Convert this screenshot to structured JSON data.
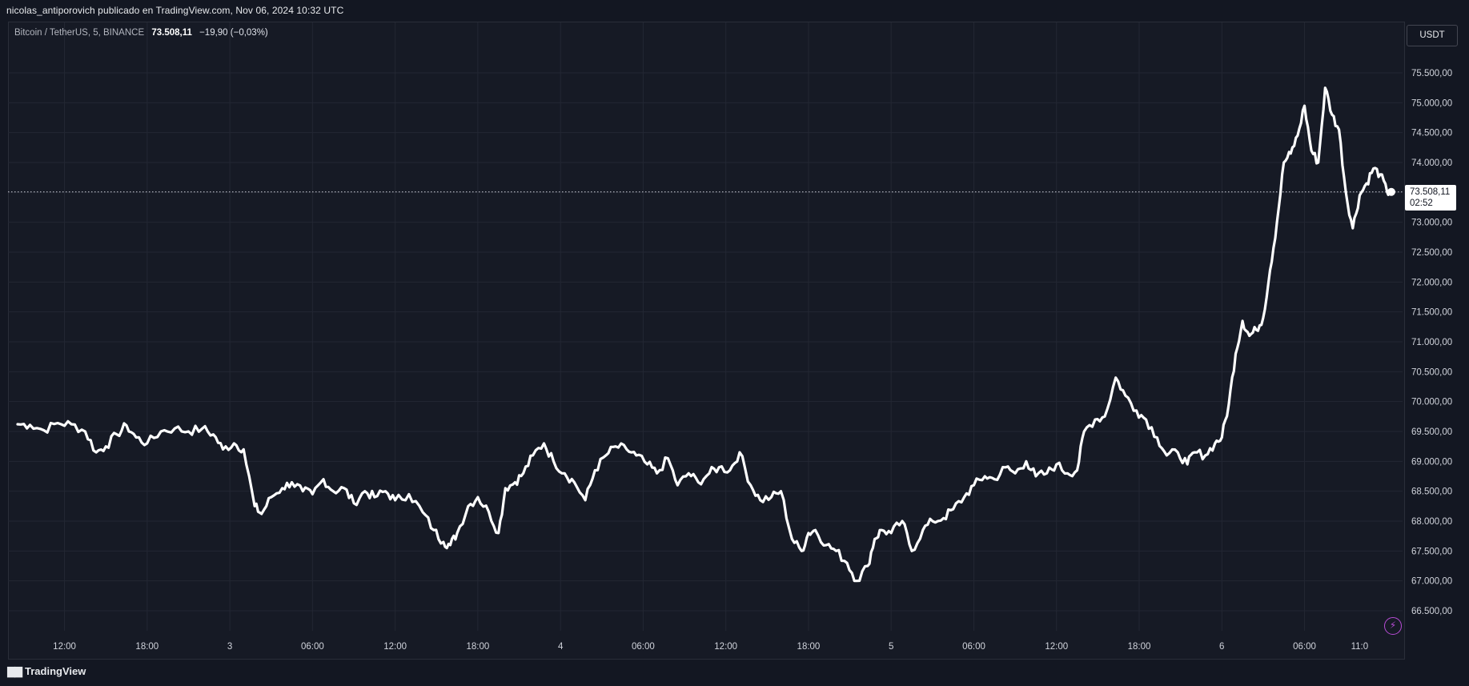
{
  "header": {
    "published_by": "nicolas_antiporovich publicado en TradingView.com, Nov 06, 2024 10:32 UTC"
  },
  "legend": {
    "symbol": "Bitcoin / TetherUS, 5, BINANCE",
    "last_price": "73.508,11",
    "change": "−19,90 (−0,03%)"
  },
  "toolbar": {
    "currency_label": "USDT",
    "flash_icon": "lightning-icon"
  },
  "price_tag": {
    "price": "73.508,11",
    "countdown": "02:52"
  },
  "footer": {
    "brand": "TradingView",
    "logo_icon": "tradingview-logo-icon"
  },
  "colors": {
    "background": "#131722",
    "grid": "#2a2e39",
    "line": "#ffffff",
    "axis_text": "#d1d4dc",
    "accent": "#b84cd6"
  },
  "chart_data": {
    "type": "line",
    "title": "",
    "xlabel": "",
    "ylabel": "",
    "ylim": [
      66150,
      76150
    ],
    "grid": true,
    "y_ticks": [
      66500,
      67000,
      67500,
      68000,
      68500,
      69000,
      69500,
      70000,
      70500,
      71000,
      71500,
      72000,
      72500,
      73000,
      73500,
      74000,
      74500,
      75000,
      75500
    ],
    "y_tick_labels": [
      "66.500,00",
      "67.000,00",
      "67.500,00",
      "68.000,00",
      "68.500,00",
      "69.000,00",
      "69.500,00",
      "70.000,00",
      "70.500,00",
      "71.000,00",
      "71.500,00",
      "72.000,00",
      "72.500,00",
      "73.000,00",
      "73.500,00",
      "74.000,00",
      "74.500,00",
      "75.000,00",
      "75.500,00"
    ],
    "x_tick_labels": [
      "12:00",
      "18:00",
      "3",
      "06:00",
      "12:00",
      "18:00",
      "4",
      "06:00",
      "12:00",
      "18:00",
      "5",
      "06:00",
      "12:00",
      "18:00",
      "6",
      "06:00",
      "11:0"
    ],
    "x_tick_hours": [
      12,
      18,
      24,
      30,
      36,
      42,
      48,
      54,
      60,
      66,
      72,
      78,
      84,
      90,
      96,
      102,
      106
    ],
    "x_unit": "hours since Nov 02 00:00 UTC",
    "current_price_line": 73508.11,
    "series": [
      {
        "name": "BTCUSDT",
        "x": [
          8.6,
          9.5,
          10.5,
          11.5,
          12.5,
          13.5,
          14.3,
          15.0,
          15.8,
          16.5,
          17.2,
          18.0,
          19.0,
          20.0,
          21.0,
          22.0,
          22.8,
          23.5,
          24.3,
          25.0,
          25.8,
          26.3,
          27.0,
          27.8,
          28.5,
          29.3,
          30.0,
          30.8,
          31.5,
          32.3,
          33.0,
          33.8,
          34.5,
          35.3,
          36.0,
          37.0,
          38.0,
          38.8,
          39.5,
          40.0,
          40.5,
          41.3,
          42.0,
          42.8,
          43.5,
          44.0,
          44.7,
          45.3,
          46.0,
          46.8,
          47.5,
          48.3,
          49.0,
          49.8,
          50.5,
          51.3,
          52.0,
          52.8,
          53.5,
          54.3,
          55.0,
          55.8,
          56.5,
          57.3,
          58.0,
          58.8,
          59.5,
          60.3,
          61.0,
          61.8,
          62.5,
          63.3,
          64.0,
          64.8,
          65.5,
          66.0,
          66.5,
          67.3,
          68.0,
          68.8,
          69.5,
          70.3,
          70.8,
          71.3,
          72.0,
          72.8,
          73.5,
          74.3,
          75.0,
          75.8,
          76.5,
          77.3,
          78.0,
          78.8,
          79.5,
          80.3,
          81.0,
          81.8,
          82.5,
          83.3,
          84.0,
          84.8,
          85.5,
          86.0,
          86.8,
          87.5,
          88.3,
          89.0,
          89.8,
          90.5,
          91.3,
          92.0,
          92.8,
          93.5,
          94.0,
          94.8,
          95.5,
          96.0,
          96.5,
          97.0,
          97.5,
          98.0,
          98.5,
          99.0,
          99.5,
          100.0,
          100.5,
          101.0,
          101.5,
          102.0,
          102.5,
          103.0,
          103.5,
          104.0,
          104.5,
          105.0,
          105.5
        ],
        "values": [
          69620,
          69610,
          69520,
          69640,
          69620,
          69500,
          69150,
          69250,
          69450,
          69600,
          69400,
          69300,
          69500,
          69550,
          69500,
          69550,
          69450,
          69200,
          69300,
          69200,
          68250,
          68120,
          68400,
          68550,
          68650,
          68500,
          68450,
          68700,
          68500,
          68550,
          68300,
          68500,
          68400,
          68500,
          68350,
          68450,
          68150,
          67850,
          67650,
          67600,
          67800,
          68250,
          68400,
          68150,
          67800,
          68550,
          68650,
          68800,
          69100,
          69300,
          69000,
          68800,
          68650,
          68350,
          68850,
          69100,
          69250,
          69200,
          69100,
          68950,
          68800,
          69050,
          68600,
          68800,
          68650,
          68800,
          68900,
          68850,
          69150,
          68600,
          68350,
          68400,
          68500,
          67700,
          67500,
          67800,
          67850,
          67600,
          67500,
          67300,
          67000,
          67250,
          67700,
          67850,
          67800,
          68000,
          67500,
          67850,
          68000,
          68050,
          68200,
          68400,
          68600,
          68750,
          68700,
          68900,
          68800,
          69000,
          68750,
          68800,
          68950,
          68800,
          68850,
          69500,
          69700,
          69750,
          70400,
          70100,
          69850,
          69700,
          69400,
          69100,
          69150,
          68950,
          69150,
          69100,
          69300,
          69400,
          69950,
          70800,
          71350,
          71100,
          71200,
          71400,
          72200,
          73000,
          74000,
          74150,
          74450,
          74950,
          74200,
          74000,
          75250,
          74800,
          74550,
          73500,
          72900
        ],
        "x_tail": [
          106.0,
          106.5,
          107.0,
          107.5,
          108.0,
          108.3
        ],
        "values_tail": [
          73450,
          73650,
          73900,
          73800,
          73500,
          73508
        ]
      }
    ]
  }
}
